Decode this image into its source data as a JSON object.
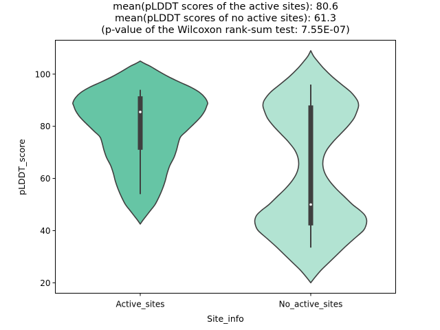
{
  "chart_data": {
    "type": "violin",
    "title_lines": [
      "mean(pLDDT scores of the active sites): 80.6",
      "mean(pLDDT scores of no active sites): 61.3",
      "(p-value of the Wilcoxon rank-sum test: 7.55E-07)"
    ],
    "xlabel": "Site_info",
    "ylabel": "pLDDT_score",
    "ylim": [
      16,
      113
    ],
    "yticks": [
      20,
      40,
      60,
      80,
      100
    ],
    "ytick_labels": [
      "20",
      "40",
      "60",
      "80",
      "100"
    ],
    "categories": [
      "Active_sites",
      "No_active_sites"
    ],
    "series": [
      {
        "category": "Active_sites",
        "color": "#66c5a5",
        "edge_color": "#3f3f3f",
        "kde_min": 42.5,
        "kde_max": 105,
        "density_profile": [
          [
            42.5,
            0.0
          ],
          [
            44,
            0.04
          ],
          [
            46,
            0.1
          ],
          [
            48,
            0.16
          ],
          [
            50,
            0.22
          ],
          [
            53,
            0.28
          ],
          [
            56,
            0.33
          ],
          [
            59,
            0.37
          ],
          [
            62,
            0.4
          ],
          [
            65,
            0.44
          ],
          [
            68,
            0.5
          ],
          [
            71,
            0.54
          ],
          [
            74,
            0.57
          ],
          [
            76,
            0.6
          ],
          [
            78,
            0.68
          ],
          [
            80,
            0.76
          ],
          [
            82,
            0.84
          ],
          [
            84,
            0.91
          ],
          [
            86,
            0.96
          ],
          [
            88,
            0.99
          ],
          [
            89,
            1.0
          ],
          [
            91,
            0.96
          ],
          [
            93,
            0.88
          ],
          [
            95,
            0.75
          ],
          [
            97,
            0.58
          ],
          [
            99,
            0.42
          ],
          [
            101,
            0.28
          ],
          [
            103,
            0.15
          ],
          [
            104,
            0.07
          ],
          [
            105,
            0.0
          ]
        ],
        "whisker_low": 54,
        "q1": 71,
        "median": 85.5,
        "q3": 91.5,
        "whisker_high": 94
      },
      {
        "category": "No_active_sites",
        "color": "#b2e3d2",
        "edge_color": "#3f3f3f",
        "kde_min": 20,
        "kde_max": 109,
        "density_profile": [
          [
            20,
            0.0
          ],
          [
            22,
            0.06
          ],
          [
            25,
            0.16
          ],
          [
            28,
            0.28
          ],
          [
            31,
            0.4
          ],
          [
            34,
            0.52
          ],
          [
            37,
            0.65
          ],
          [
            40,
            0.78
          ],
          [
            42,
            0.82
          ],
          [
            44,
            0.83
          ],
          [
            46,
            0.8
          ],
          [
            48,
            0.72
          ],
          [
            50,
            0.62
          ],
          [
            53,
            0.5
          ],
          [
            56,
            0.38
          ],
          [
            59,
            0.28
          ],
          [
            62,
            0.21
          ],
          [
            65,
            0.18
          ],
          [
            68,
            0.19
          ],
          [
            71,
            0.24
          ],
          [
            74,
            0.33
          ],
          [
            77,
            0.44
          ],
          [
            80,
            0.55
          ],
          [
            83,
            0.64
          ],
          [
            86,
            0.69
          ],
          [
            88,
            0.71
          ],
          [
            90,
            0.69
          ],
          [
            93,
            0.6
          ],
          [
            96,
            0.46
          ],
          [
            99,
            0.32
          ],
          [
            102,
            0.2
          ],
          [
            105,
            0.1
          ],
          [
            107,
            0.04
          ],
          [
            109,
            0.0
          ]
        ],
        "whisker_low": 33.5,
        "q1": 42,
        "median": 50,
        "q3": 88,
        "whisker_high": 96
      }
    ],
    "grid": false,
    "legend": "none"
  }
}
